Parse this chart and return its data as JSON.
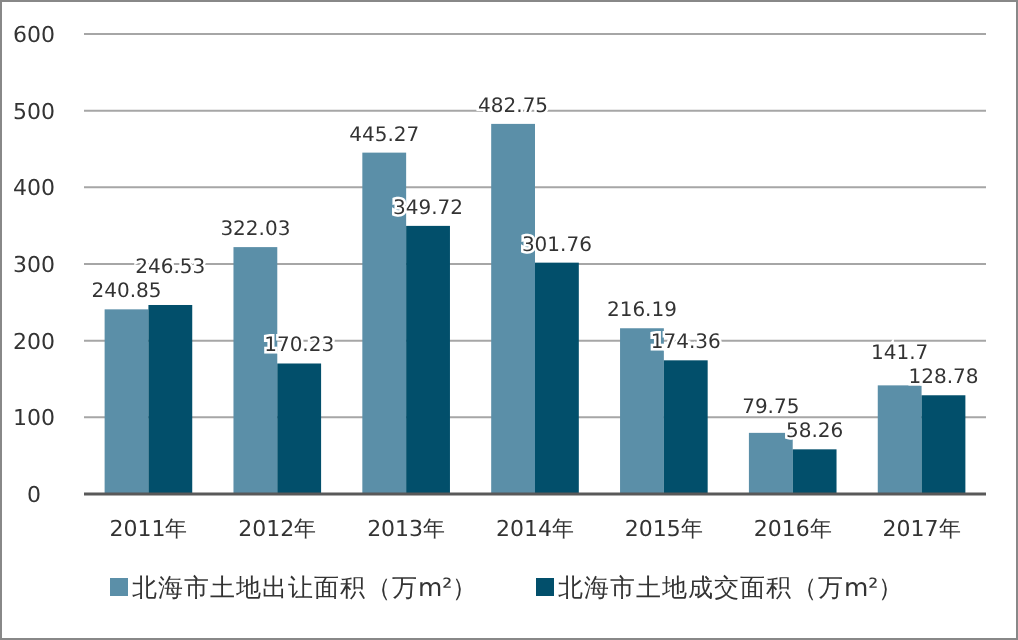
{
  "chart_data": {
    "type": "bar",
    "categories": [
      "2011年",
      "2012年",
      "2013年",
      "2014年",
      "2015年",
      "2016年",
      "2017年"
    ],
    "series": [
      {
        "name": "北海市土地出让面积（万m²）",
        "color": "#5b8fa8",
        "values": [
          240.85,
          322.03,
          445.27,
          482.75,
          216.19,
          79.75,
          141.7
        ]
      },
      {
        "name": "北海市土地成交面积（万m²）",
        "color": "#024f6b",
        "values": [
          246.53,
          170.23,
          349.72,
          301.76,
          174.36,
          58.26,
          128.78
        ]
      }
    ],
    "ylim": [
      0,
      600
    ],
    "yticks": [
      0,
      100,
      200,
      300,
      400,
      500,
      600
    ],
    "grid": "y",
    "legend": "bottom",
    "data_labels": true
  }
}
